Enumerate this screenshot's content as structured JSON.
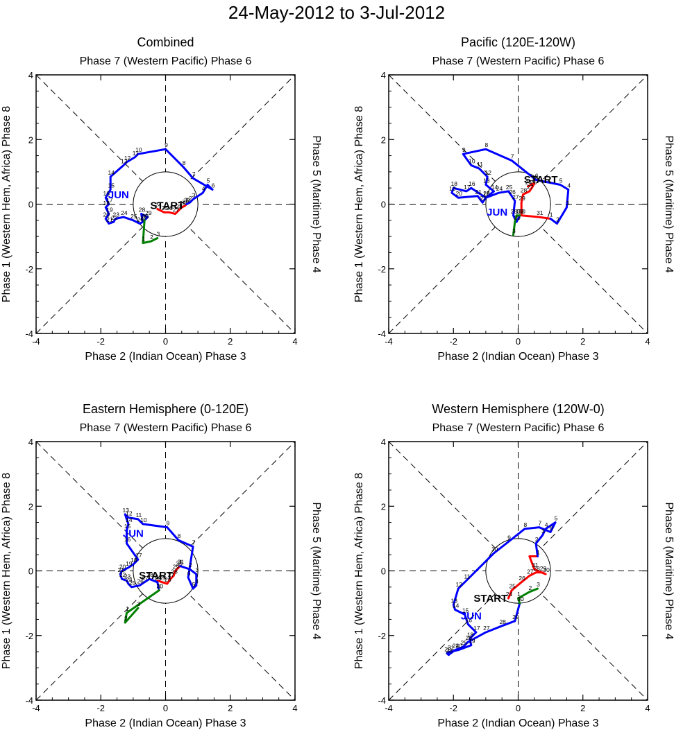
{
  "page_title": "24-May-2012 to 3-Jul-2012",
  "colors": {
    "may": "#ff0000",
    "jun": "#0000ff",
    "jul": "#008000",
    "axis": "#000000"
  },
  "chart_data": [
    {
      "type": "line",
      "title": "Combined",
      "top_label": "Phase 7 (Western Pacific) Phase 6",
      "bottom_label": "Phase 2 (Indian Ocean) Phase 3",
      "left_label": "Phase 1 (Western Hem, Africa) Phase 8",
      "right_label": "Phase 5 (Maritime) Phase 4",
      "xlim": [
        -4,
        4
      ],
      "ylim": [
        -4,
        4
      ],
      "ticks": [
        "-4",
        "-2",
        "0",
        "2",
        "4"
      ],
      "start_label": "START",
      "start_at": [
        0.05,
        -0.15
      ],
      "month_label": "JUN",
      "month_at": [
        -1.45,
        0.18
      ],
      "series": [
        {
          "name": "May",
          "color": "may",
          "points": [
            [
              -0.25,
              -0.15
            ],
            [
              -0.05,
              -0.25
            ],
            [
              0.1,
              -0.25
            ],
            [
              0.3,
              -0.3
            ],
            [
              0.4,
              -0.2
            ],
            [
              0.5,
              -0.1
            ],
            [
              0.6,
              -0.05
            ],
            [
              0.65,
              0.0
            ]
          ],
          "labels": [
            "24",
            "25",
            "26",
            "27",
            "28",
            "29",
            "30",
            "31"
          ]
        },
        {
          "name": "June",
          "color": "jun",
          "points": [
            [
              0.65,
              0.0
            ],
            [
              0.75,
              0.05
            ],
            [
              0.85,
              0.15
            ],
            [
              1.15,
              0.35
            ],
            [
              1.3,
              0.6
            ],
            [
              1.45,
              0.45
            ],
            [
              0.85,
              0.8
            ],
            [
              0.55,
              1.15
            ],
            [
              0.0,
              1.7
            ],
            [
              -0.85,
              1.55
            ],
            [
              -0.95,
              1.45
            ],
            [
              -1.2,
              1.3
            ],
            [
              -1.3,
              1.2
            ],
            [
              -1.7,
              0.85
            ],
            [
              -1.7,
              0.45
            ],
            [
              -1.85,
              0.2
            ],
            [
              -1.75,
              0.0
            ],
            [
              -1.85,
              -0.1
            ],
            [
              -1.75,
              -0.3
            ],
            [
              -1.85,
              -0.45
            ],
            [
              -1.75,
              -0.6
            ],
            [
              -1.6,
              -0.55
            ],
            [
              -1.55,
              -0.45
            ],
            [
              -1.3,
              -0.4
            ],
            [
              -1.0,
              -0.5
            ],
            [
              -0.8,
              -0.6
            ],
            [
              -0.7,
              -0.55
            ],
            [
              -0.75,
              -0.3
            ],
            [
              -0.55,
              -0.4
            ],
            [
              -0.65,
              -0.5
            ]
          ],
          "labels": [
            "1",
            "2",
            "3",
            "4",
            "5",
            "6",
            "7",
            "8",
            "9",
            "10",
            "11",
            "12",
            "13",
            "14",
            "15",
            "16",
            "17",
            "18",
            "19",
            "20",
            "21",
            "22",
            "23",
            "24",
            "25",
            "26",
            "27",
            "28",
            "29",
            "30"
          ]
        },
        {
          "name": "July",
          "color": "jul",
          "points": [
            [
              -0.65,
              -0.5
            ],
            [
              -0.7,
              -1.2
            ],
            [
              -0.45,
              -1.15
            ],
            [
              -0.25,
              -1.05
            ]
          ],
          "labels": [
            "30",
            "1",
            "2",
            "3"
          ]
        }
      ]
    },
    {
      "type": "line",
      "title": "Pacific (120E-120W)",
      "top_label": "Phase 7 (Western Pacific) Phase 6",
      "bottom_label": "Phase 2 (Indian Ocean) Phase 3",
      "left_label": "Phase 1 (Western Hem, Africa) Phase 8",
      "right_label": "Phase 5 (Maritime) Phase 4",
      "xlim": [
        -4,
        4
      ],
      "ylim": [
        -4,
        4
      ],
      "ticks": [
        "-4",
        "-2",
        "0",
        "2",
        "4"
      ],
      "start_label": "START",
      "start_at": [
        0.7,
        0.65
      ],
      "month_label": "JUN",
      "month_at": [
        -0.65,
        -0.35
      ],
      "series": [
        {
          "name": "May",
          "color": "may",
          "points": [
            [
              0.3,
              0.55
            ],
            [
              0.5,
              0.65
            ],
            [
              0.45,
              0.55
            ],
            [
              0.35,
              0.4
            ],
            [
              0.15,
              0.3
            ],
            [
              0.1,
              0.05
            ],
            [
              0.1,
              -0.35
            ],
            [
              0.65,
              -0.4
            ],
            [
              1.0,
              -0.45
            ]
          ],
          "labels": [
            "24",
            "25",
            "26",
            "27",
            "28",
            "29",
            "30",
            "31",
            ""
          ]
        },
        {
          "name": "June",
          "color": "jun",
          "points": [
            [
              1.0,
              -0.45
            ],
            [
              1.2,
              -0.6
            ],
            [
              1.5,
              -0.1
            ],
            [
              1.55,
              0.45
            ],
            [
              1.3,
              0.6
            ],
            [
              0.55,
              0.75
            ],
            [
              -0.2,
              1.35
            ],
            [
              -1.0,
              1.7
            ],
            [
              -1.7,
              1.55
            ],
            [
              -1.45,
              1.2
            ],
            [
              -1.2,
              1.1
            ],
            [
              -0.95,
              0.85
            ],
            [
              -1.0,
              0.6
            ],
            [
              -0.75,
              0.4
            ],
            [
              -1.0,
              0.2
            ],
            [
              -1.45,
              0.5
            ],
            [
              -1.6,
              0.4
            ],
            [
              -2.0,
              0.5
            ],
            [
              -2.05,
              0.35
            ],
            [
              -1.85,
              0.2
            ],
            [
              -1.25,
              0.25
            ],
            [
              -1.1,
              0.05
            ],
            [
              -1.0,
              0.2
            ],
            [
              -0.6,
              0.35
            ],
            [
              -0.3,
              0.4
            ],
            [
              -0.2,
              0.25
            ],
            [
              -0.1,
              0.1
            ],
            [
              -0.15,
              -0.35
            ],
            [
              -0.05,
              -0.55
            ],
            [
              0.05,
              -0.35
            ]
          ],
          "labels": [
            "1",
            "2",
            "3",
            "4",
            "5",
            "6",
            "7",
            "8",
            "9",
            "10",
            "11",
            "12",
            "13",
            "14",
            "15",
            "16",
            "17",
            "18",
            "19",
            "20",
            "21",
            "22",
            "23",
            "24",
            "25",
            "26",
            "27",
            "28",
            "29",
            "30"
          ]
        },
        {
          "name": "July",
          "color": "jul",
          "points": [
            [
              0.05,
              -0.35
            ],
            [
              -0.05,
              -0.35
            ],
            [
              -0.1,
              -0.55
            ],
            [
              -0.15,
              -0.95
            ]
          ],
          "labels": [
            "30",
            "1",
            "2",
            "3"
          ]
        }
      ]
    },
    {
      "type": "line",
      "title": "Eastern Hemisphere (0-120E)",
      "top_label": "Phase 7 (Western Pacific) Phase 6",
      "bottom_label": "Phase 2 (Indian Ocean) Phase 3",
      "left_label": "Phase 1 (Western Hem, Africa) Phase 8",
      "right_label": "Phase 5 (Maritime) Phase 4",
      "xlim": [
        -4,
        4
      ],
      "ylim": [
        -4,
        4
      ],
      "ticks": [
        "-4",
        "-2",
        "0",
        "2",
        "4"
      ],
      "start_label": "START",
      "start_at": [
        -0.3,
        -0.25
      ],
      "month_label": "JUN",
      "month_at": [
        -1.0,
        1.05
      ],
      "series": [
        {
          "name": "May",
          "color": "may",
          "points": [
            [
              -0.25,
              -0.3
            ],
            [
              -0.1,
              -0.35
            ],
            [
              0.05,
              -0.4
            ],
            [
              0.15,
              -0.25
            ],
            [
              0.25,
              -0.15
            ],
            [
              0.3,
              0.0
            ],
            [
              0.4,
              0.1
            ],
            [
              0.45,
              0.15
            ]
          ],
          "labels": [
            "24",
            "25",
            "26",
            "27",
            "28",
            "29",
            "30",
            "31"
          ]
        },
        {
          "name": "June",
          "color": "jun",
          "points": [
            [
              0.45,
              0.15
            ],
            [
              0.75,
              0.05
            ],
            [
              0.95,
              -0.1
            ],
            [
              0.95,
              -0.45
            ],
            [
              0.85,
              -0.55
            ],
            [
              0.7,
              -0.2
            ],
            [
              0.85,
              0.75
            ],
            [
              0.4,
              0.95
            ],
            [
              0.05,
              1.35
            ],
            [
              -0.7,
              1.45
            ],
            [
              -0.85,
              1.6
            ],
            [
              -1.15,
              1.65
            ],
            [
              -1.25,
              1.75
            ],
            [
              -1.15,
              1.45
            ],
            [
              -1.2,
              1.25
            ],
            [
              -1.2,
              0.85
            ],
            [
              -0.85,
              0.35
            ],
            [
              -1.0,
              0.2
            ],
            [
              -1.15,
              0.1
            ],
            [
              -1.35,
              0.0
            ],
            [
              -1.4,
              -0.1
            ],
            [
              -1.35,
              -0.25
            ],
            [
              -1.2,
              -0.3
            ],
            [
              -1.15,
              -0.4
            ],
            [
              -1.05,
              -0.5
            ],
            [
              -0.8,
              -0.45
            ],
            [
              -0.65,
              -0.35
            ],
            [
              -0.5,
              -0.25
            ],
            [
              -0.25,
              -0.35
            ],
            [
              -0.2,
              -0.6
            ]
          ],
          "labels": [
            "1",
            "2",
            "3",
            "4",
            "5",
            "6",
            "7",
            "8",
            "9",
            "10",
            "11",
            "12",
            "13",
            "14",
            "15",
            "16",
            "17",
            "18",
            "19",
            "20",
            "21",
            "22",
            "23",
            "24",
            "25",
            "26",
            "27",
            "28",
            "29",
            "30"
          ]
        },
        {
          "name": "July",
          "color": "jul",
          "points": [
            [
              -0.2,
              -0.6
            ],
            [
              -1.2,
              -1.3
            ],
            [
              -1.25,
              -1.6
            ],
            [
              -0.85,
              -1.15
            ]
          ],
          "labels": [
            "30",
            "1",
            "2",
            "3"
          ]
        }
      ]
    },
    {
      "type": "line",
      "title": "Western Hemisphere (120W-0)",
      "top_label": "Phase 7 (Western Pacific) Phase 6",
      "bottom_label": "Phase 2 (Indian Ocean) Phase 3",
      "left_label": "Phase 1 (Western Hem, Africa) Phase 8",
      "right_label": "Phase 5 (Maritime) Phase 4",
      "xlim": [
        -4,
        4
      ],
      "ylim": [
        -4,
        4
      ],
      "ticks": [
        "-4",
        "-2",
        "0",
        "2",
        "4"
      ],
      "start_label": "START",
      "start_at": [
        -0.85,
        -0.95
      ],
      "month_label": "JUN",
      "month_at": [
        -1.45,
        -1.5
      ],
      "series": [
        {
          "name": "May",
          "color": "may",
          "points": [
            [
              -0.3,
              -0.85
            ],
            [
              -0.2,
              -0.6
            ],
            [
              0.1,
              -0.35
            ],
            [
              0.35,
              -0.15
            ],
            [
              0.55,
              -0.05
            ],
            [
              0.75,
              -0.05
            ],
            [
              0.85,
              -0.1
            ],
            [
              0.5,
              0.05
            ],
            [
              0.35,
              0.45
            ],
            [
              0.6,
              0.45
            ]
          ],
          "labels": [
            "24",
            "25",
            "26",
            "27",
            "28",
            "29",
            "30",
            "31",
            "",
            ""
          ]
        },
        {
          "name": "June",
          "color": "jun",
          "points": [
            [
              0.6,
              0.45
            ],
            [
              0.55,
              0.85
            ],
            [
              0.75,
              1.1
            ],
            [
              0.85,
              1.3
            ],
            [
              1.15,
              1.5
            ],
            [
              1.0,
              1.2
            ],
            [
              0.65,
              1.35
            ],
            [
              0.2,
              1.3
            ],
            [
              -0.3,
              0.9
            ],
            [
              -0.75,
              0.55
            ],
            [
              -1.6,
              -0.3
            ],
            [
              -1.85,
              -0.55
            ],
            [
              -2.0,
              -1.05
            ],
            [
              -1.95,
              -1.2
            ],
            [
              -1.65,
              -1.35
            ],
            [
              -1.55,
              -1.65
            ],
            [
              -1.3,
              -1.9
            ],
            [
              -1.5,
              -2.1
            ],
            [
              -1.45,
              -2.3
            ],
            [
              -1.85,
              -2.45
            ],
            [
              -2.1,
              -2.5
            ],
            [
              -2.2,
              -2.55
            ],
            [
              -2.15,
              -2.6
            ],
            [
              -1.95,
              -2.45
            ],
            [
              -1.7,
              -2.35
            ],
            [
              -1.55,
              -2.2
            ],
            [
              -1.0,
              -1.9
            ],
            [
              -0.5,
              -1.7
            ],
            [
              -0.1,
              -1.55
            ],
            [
              0.05,
              -1.0
            ]
          ],
          "labels": [
            "1",
            "2",
            "3",
            "4",
            "5",
            "6",
            "7",
            "8",
            "9",
            "10",
            "11",
            "12",
            "13",
            "14",
            "15",
            "16",
            "17",
            "18",
            "19",
            "20",
            "21",
            "22",
            "23",
            "24",
            "25",
            "26",
            "27",
            "28",
            "29",
            "30"
          ]
        },
        {
          "name": "July",
          "color": "jul",
          "points": [
            [
              0.05,
              -1.0
            ],
            [
              0.0,
              -0.85
            ],
            [
              0.35,
              -0.65
            ],
            [
              0.6,
              -0.55
            ]
          ],
          "labels": [
            "30",
            "1",
            "2",
            "3"
          ]
        }
      ]
    }
  ]
}
